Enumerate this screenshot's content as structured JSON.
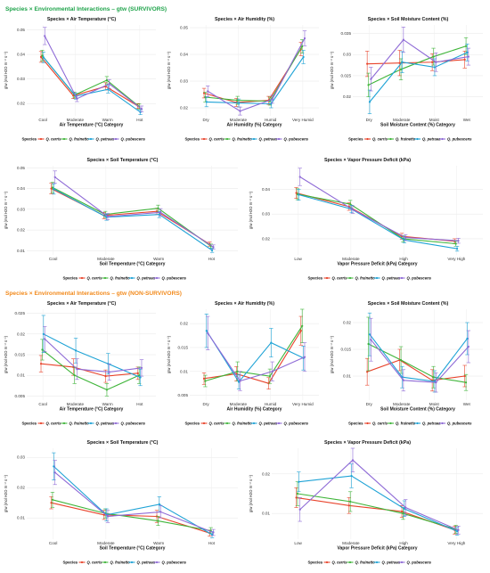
{
  "colors": {
    "Q. cerris": "#e8432b",
    "Q. frainetto": "#3fb53a",
    "Q. petraea": "#1fa3d6",
    "Q. pubescens": "#8e6ad6",
    "section_survivors": "#1ea34a",
    "section_non_survivors": "#f28a1c"
  },
  "sections": [
    {
      "title": "Species × Environmental Interactions – gtw (SURVIVORS)",
      "color": "#1ea34a"
    },
    {
      "title": "Species × Environmental Interactions – gtw (NON-SURVIVORS)",
      "color": "#f28a1c"
    }
  ],
  "legend": {
    "title": "Species",
    "items": [
      "Q. cerris",
      "Q. frainetto",
      "Q. petraea",
      "Q. pubescens"
    ]
  },
  "ylabel": "gtw (mol H2O m⁻² s⁻¹)",
  "chart_data": [
    {
      "type": "line",
      "section": "SURVIVORS",
      "title": "Species × Air Temperature (°C)",
      "xlabel": "Air Temperature (°C) Category",
      "ylabel": "gtw (mol H2O m⁻² s⁻¹)",
      "categories": [
        "Cool",
        "Moderate",
        "Warm",
        "Hot"
      ],
      "ylim": [
        0.015,
        0.052
      ],
      "yticks": [
        0.02,
        0.03,
        0.04,
        0.05
      ],
      "series": [
        {
          "name": "Q. cerris",
          "values": [
            0.039,
            0.0232,
            0.027,
            0.019
          ],
          "err": [
            0.0022,
            0.0012,
            0.0015,
            0.001
          ]
        },
        {
          "name": "Q. frainetto",
          "values": [
            0.0395,
            0.0235,
            0.0295,
            0.0188
          ],
          "err": [
            0.0022,
            0.0012,
            0.0015,
            0.001
          ]
        },
        {
          "name": "Q. petraea",
          "values": [
            0.0388,
            0.023,
            0.0258,
            0.0165
          ],
          "err": [
            0.0022,
            0.0012,
            0.0015,
            0.001
          ]
        },
        {
          "name": "Q. pubescens",
          "values": [
            0.0475,
            0.022,
            0.028,
            0.0178
          ],
          "err": [
            0.0035,
            0.0012,
            0.0018,
            0.0012
          ]
        }
      ]
    },
    {
      "type": "line",
      "section": "SURVIVORS",
      "title": "Species × Air Humidity (%)",
      "xlabel": "Air Humidity (%) Category",
      "ylabel": "gtw (mol H2O m⁻² s⁻¹)",
      "categories": [
        "Dry",
        "Moderate",
        "Humid",
        "Very Humid"
      ],
      "ylim": [
        0.017,
        0.051
      ],
      "yticks": [
        0.02,
        0.03,
        0.04,
        0.05
      ],
      "series": [
        {
          "name": "Q. cerris",
          "values": [
            0.0255,
            0.022,
            0.0228,
            0.042
          ],
          "err": [
            0.0018,
            0.0015,
            0.0015,
            0.0025
          ]
        },
        {
          "name": "Q. frainetto",
          "values": [
            0.024,
            0.0228,
            0.0225,
            0.043
          ],
          "err": [
            0.0018,
            0.0015,
            0.0015,
            0.0025
          ]
        },
        {
          "name": "Q. petraea",
          "values": [
            0.0222,
            0.0218,
            0.0215,
            0.039
          ],
          "err": [
            0.0018,
            0.0015,
            0.0015,
            0.0025
          ]
        },
        {
          "name": "Q. pubescens",
          "values": [
            0.0262,
            0.0188,
            0.0232,
            0.046
          ],
          "err": [
            0.002,
            0.0015,
            0.0015,
            0.0028
          ]
        }
      ]
    },
    {
      "type": "line",
      "section": "SURVIVORS",
      "title": "Species × Soil Moisture Content (%)",
      "xlabel": "Soil Moisture Content (%) Category",
      "ylabel": "gtw (mol H2O m⁻² s⁻¹)",
      "categories": [
        "Dry",
        "Moderate",
        "Moist",
        "Wet"
      ],
      "ylim": [
        0.0155,
        0.037
      ],
      "yticks": [
        0.02,
        0.025,
        0.03,
        0.035
      ],
      "series": [
        {
          "name": "Q. cerris",
          "values": [
            0.0278,
            0.028,
            0.0282,
            0.0288
          ],
          "err": [
            0.003,
            0.003,
            0.002,
            0.002
          ]
        },
        {
          "name": "Q. frainetto",
          "values": [
            0.0228,
            0.0265,
            0.0295,
            0.032
          ],
          "err": [
            0.0028,
            0.0025,
            0.002,
            0.002
          ]
        },
        {
          "name": "Q. petraea",
          "values": [
            0.0188,
            0.0282,
            0.027,
            0.0305
          ],
          "err": [
            0.0028,
            0.0025,
            0.002,
            0.002
          ]
        },
        {
          "name": "Q. pubescens",
          "values": [
            0.0242,
            0.0335,
            0.0282,
            0.0295
          ],
          "err": [
            0.0028,
            0.003,
            0.0022,
            0.002
          ]
        }
      ]
    },
    {
      "type": "line",
      "section": "SURVIVORS",
      "title": "Species × Soil Temperature (°C)",
      "xlabel": "Soil Temperature (°C) Category",
      "ylabel": "gtw (mol H2O m⁻² s⁻¹)",
      "categories": [
        "Cool",
        "Moderate",
        "Warm",
        "Hot"
      ],
      "ylim": [
        0.008,
        0.051
      ],
      "yticks": [
        0.01,
        0.02,
        0.03,
        0.04,
        0.05
      ],
      "series": [
        {
          "name": "Q. cerris",
          "values": [
            0.04,
            0.027,
            0.029,
            0.0132
          ],
          "err": [
            0.0025,
            0.0015,
            0.0015,
            0.001
          ]
        },
        {
          "name": "Q. frainetto",
          "values": [
            0.0405,
            0.0275,
            0.0305,
            0.0122
          ],
          "err": [
            0.0025,
            0.0015,
            0.0015,
            0.001
          ]
        },
        {
          "name": "Q. petraea",
          "values": [
            0.0398,
            0.0262,
            0.0275,
            0.0102
          ],
          "err": [
            0.0025,
            0.0015,
            0.0015,
            0.001
          ]
        },
        {
          "name": "Q. pubescens",
          "values": [
            0.0455,
            0.0265,
            0.0285,
            0.0118
          ],
          "err": [
            0.003,
            0.0015,
            0.0018,
            0.001
          ]
        }
      ]
    },
    {
      "type": "line",
      "section": "SURVIVORS",
      "title": "Species × Vapor Pressure Deficit (kPa)",
      "xlabel": "Vapor Pressure Deficit (kPa) Category",
      "ylabel": "gtw (mol H2O m⁻² s⁻¹)",
      "categories": [
        "Low",
        "Moderate",
        "High",
        "Very High"
      ],
      "ylim": [
        0.0135,
        0.0495
      ],
      "yticks": [
        0.02,
        0.03,
        0.04
      ],
      "series": [
        {
          "name": "Q. cerris",
          "values": [
            0.0385,
            0.033,
            0.021,
            0.019
          ],
          "err": [
            0.0022,
            0.0015,
            0.0012,
            0.001
          ]
        },
        {
          "name": "Q. frainetto",
          "values": [
            0.038,
            0.034,
            0.02,
            0.018
          ],
          "err": [
            0.0022,
            0.0015,
            0.0012,
            0.001
          ]
        },
        {
          "name": "Q. petraea",
          "values": [
            0.0378,
            0.032,
            0.0195,
            0.016
          ],
          "err": [
            0.0022,
            0.0015,
            0.0012,
            0.001
          ]
        },
        {
          "name": "Q. pubescens",
          "values": [
            0.045,
            0.0318,
            0.0205,
            0.0192
          ],
          "err": [
            0.0035,
            0.0015,
            0.0012,
            0.001
          ]
        }
      ]
    },
    {
      "type": "line",
      "section": "NON-SURVIVORS",
      "title": "Species × Air Temperature (°C)",
      "xlabel": "Air Temperature (°C) Category",
      "ylabel": "gtw (mol H2O m⁻² s⁻¹)",
      "categories": [
        "Cool",
        "Moderate",
        "Warm",
        "Hot"
      ],
      "ylim": [
        0.004,
        0.026
      ],
      "yticks": [
        0.005,
        0.01,
        0.015,
        0.02,
        0.025
      ],
      "series": [
        {
          "name": "Q. cerris",
          "values": [
            0.0128,
            0.012,
            0.0098,
            0.0105
          ],
          "err": [
            0.002,
            0.002,
            0.0015,
            0.0015
          ]
        },
        {
          "name": "Q. frainetto",
          "values": [
            0.0162,
            0.01,
            0.0065,
            0.01
          ],
          "err": [
            0.0025,
            0.002,
            0.0015,
            0.002
          ]
        },
        {
          "name": "Q. petraea",
          "values": [
            0.02,
            0.016,
            0.0128,
            0.0095
          ],
          "err": [
            0.0045,
            0.003,
            0.0025,
            0.002
          ]
        },
        {
          "name": "Q. pubescens",
          "values": [
            0.0188,
            0.0115,
            0.0108,
            0.0118
          ],
          "err": [
            0.003,
            0.0025,
            0.002,
            0.002
          ]
        }
      ]
    },
    {
      "type": "line",
      "section": "NON-SURVIVORS",
      "title": "Species × Air Humidity (%)",
      "xlabel": "Air Humidity (%) Category",
      "ylabel": "gtw (mol H2O m⁻² s⁻¹)",
      "categories": [
        "Dry",
        "Moderate",
        "Humid",
        "Very Humid"
      ],
      "ylim": [
        0.004,
        0.023
      ],
      "yticks": [
        0.005,
        0.01,
        0.015,
        0.02
      ],
      "series": [
        {
          "name": "Q. cerris",
          "values": [
            0.0085,
            0.0095,
            0.0075,
            0.0185
          ],
          "err": [
            0.0012,
            0.0015,
            0.0012,
            0.003
          ]
        },
        {
          "name": "Q. frainetto",
          "values": [
            0.008,
            0.01,
            0.009,
            0.0195
          ],
          "err": [
            0.0012,
            0.002,
            0.0015,
            0.0035
          ]
        },
        {
          "name": "Q. petraea",
          "values": [
            0.0185,
            0.0078,
            0.016,
            0.0128
          ],
          "err": [
            0.0035,
            0.0015,
            0.003,
            0.0025
          ]
        },
        {
          "name": "Q. pubescens",
          "values": [
            0.018,
            0.008,
            0.01,
            0.013
          ],
          "err": [
            0.0035,
            0.002,
            0.002,
            0.003
          ]
        }
      ]
    },
    {
      "type": "line",
      "section": "NON-SURVIVORS",
      "title": "Species × Soil Moisture Content (%)",
      "xlabel": "Soil Moisture Content (%) Category",
      "ylabel": "gtw (mol H2O m⁻² s⁻¹)",
      "categories": [
        "Dry",
        "Moderate",
        "Moist",
        "Wet"
      ],
      "ylim": [
        0.0055,
        0.0225
      ],
      "yticks": [
        0.01,
        0.015,
        0.02
      ],
      "series": [
        {
          "name": "Q. cerris",
          "values": [
            0.0108,
            0.013,
            0.0092,
            0.01
          ],
          "err": [
            0.0025,
            0.002,
            0.002,
            0.002
          ]
        },
        {
          "name": "Q. frainetto",
          "values": [
            0.016,
            0.013,
            0.0098,
            0.0088
          ],
          "err": [
            0.005,
            0.0025,
            0.002,
            0.0015
          ]
        },
        {
          "name": "Q. petraea",
          "values": [
            0.0178,
            0.0098,
            0.009,
            0.017
          ],
          "err": [
            0.004,
            0.002,
            0.002,
            0.003
          ]
        },
        {
          "name": "Q. pubescens",
          "values": [
            0.0168,
            0.0092,
            0.0088,
            0.0155
          ],
          "err": [
            0.004,
            0.002,
            0.0018,
            0.003
          ]
        }
      ]
    },
    {
      "type": "line",
      "section": "NON-SURVIVORS",
      "title": "Species × Soil Temperature (°C)",
      "xlabel": "Soil Temperature (°C) Category",
      "ylabel": "gtw (mol H2O m⁻² s⁻¹)",
      "categories": [
        "Cool",
        "Moderate",
        "Warm",
        "Hot"
      ],
      "ylim": [
        0.003,
        0.033
      ],
      "yticks": [
        0.01,
        0.02,
        0.03
      ],
      "series": [
        {
          "name": "Q. cerris",
          "values": [
            0.015,
            0.011,
            0.0105,
            0.005
          ],
          "err": [
            0.002,
            0.0015,
            0.002,
            0.001
          ]
        },
        {
          "name": "Q. frainetto",
          "values": [
            0.016,
            0.0115,
            0.009,
            0.0058
          ],
          "err": [
            0.0025,
            0.0015,
            0.0015,
            0.001
          ]
        },
        {
          "name": "Q. petraea",
          "values": [
            0.027,
            0.011,
            0.0145,
            0.0045
          ],
          "err": [
            0.0045,
            0.002,
            0.0025,
            0.001
          ]
        },
        {
          "name": "Q. pubescens",
          "values": [
            0.025,
            0.0105,
            0.012,
            0.0052
          ],
          "err": [
            0.004,
            0.002,
            0.002,
            0.001
          ]
        }
      ]
    },
    {
      "type": "line",
      "section": "NON-SURVIVORS",
      "title": "Species × Vapor Pressure Deficit (kPa)",
      "xlabel": "Vapor Pressure Deficit (kPa) Category",
      "ylabel": "gtw (mol H2O m⁻² s⁻¹)",
      "categories": [
        "Low",
        "Moderate",
        "High",
        "Very High"
      ],
      "ylim": [
        0.0035,
        0.0265
      ],
      "yticks": [
        0.01,
        0.02
      ],
      "series": [
        {
          "name": "Q. cerris",
          "values": [
            0.014,
            0.012,
            0.0105,
            0.0058
          ],
          "err": [
            0.0025,
            0.002,
            0.0015,
            0.001
          ]
        },
        {
          "name": "Q. frainetto",
          "values": [
            0.015,
            0.013,
            0.01,
            0.006
          ],
          "err": [
            0.003,
            0.0025,
            0.0015,
            0.001
          ]
        },
        {
          "name": "Q. petraea",
          "values": [
            0.018,
            0.0195,
            0.0112,
            0.0055
          ],
          "err": [
            0.0025,
            0.003,
            0.002,
            0.001
          ]
        },
        {
          "name": "Q. pubescens",
          "values": [
            0.011,
            0.0235,
            0.0115,
            0.0058
          ],
          "err": [
            0.003,
            0.003,
            0.002,
            0.001
          ]
        }
      ]
    }
  ]
}
